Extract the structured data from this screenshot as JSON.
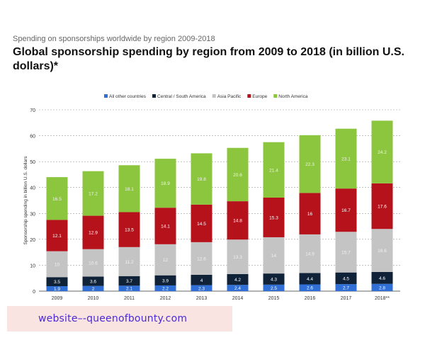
{
  "header": {
    "subtitle": "Spending on sponsorships worldwide by region 2009-2018",
    "title": "Global sponsorship spending by region from 2009 to 2018 (in billion U.S. dollars)*"
  },
  "watermark": {
    "text": "website–-queenofbounty.com"
  },
  "chart_data": {
    "type": "bar",
    "stacked": true,
    "categories": [
      "2009",
      "2010",
      "2011",
      "2012",
      "2013",
      "2014",
      "2015",
      "2016",
      "2017",
      "2018**"
    ],
    "ylabel": "Sponsorship spending in billion U.S. dollars",
    "xlabel": "",
    "ylim": [
      0,
      70
    ],
    "yticks": [
      0,
      10,
      20,
      30,
      40,
      50,
      60,
      70
    ],
    "grid": true,
    "legend_position": "top",
    "series": [
      {
        "name": "All other countries",
        "color": "#2f6fd6",
        "values": [
          1.9,
          2,
          2.1,
          2.2,
          2.3,
          2.4,
          2.5,
          2.6,
          2.7,
          2.8
        ],
        "labels": [
          "1.9",
          "2",
          "2.1",
          "2.2",
          "2.3",
          "2.4",
          "2.5",
          "2.6",
          "2.7",
          "2.8"
        ]
      },
      {
        "name": "Central / South America",
        "color": "#0f2238",
        "values": [
          3.5,
          3.6,
          3.7,
          3.9,
          4,
          4.2,
          4.3,
          4.4,
          4.5,
          4.6
        ],
        "labels": [
          "3.5",
          "3.6",
          "3.7",
          "3.9",
          "4",
          "4.2",
          "4.3",
          "4.4",
          "4.5",
          "4.6"
        ]
      },
      {
        "name": "Asia Pacific",
        "color": "#c4c4c4",
        "values": [
          10,
          10.6,
          11.2,
          12,
          12.6,
          13.3,
          14,
          14.9,
          15.7,
          16.6
        ],
        "labels": [
          "10",
          "10.6",
          "11.2",
          "12",
          "12.6",
          "13.3",
          "14",
          "14.9",
          "15.7",
          "16.6"
        ]
      },
      {
        "name": "Europe",
        "color": "#b5121b",
        "values": [
          12.1,
          12.9,
          13.5,
          14.1,
          14.5,
          14.8,
          15.3,
          16,
          16.7,
          17.6
        ],
        "labels": [
          "12.1",
          "12.9",
          "13.5",
          "14.1",
          "14.5",
          "14.8",
          "15.3",
          "16",
          "16.7",
          "17.6"
        ]
      },
      {
        "name": "North America",
        "color": "#8cc63e",
        "values": [
          16.5,
          17.2,
          18.1,
          18.9,
          19.8,
          20.6,
          21.4,
          22.3,
          23.1,
          24.2
        ],
        "labels": [
          "16.5",
          "17.2",
          "18.1",
          "18.9",
          "19.8",
          "20.6",
          "21.4",
          "22.3",
          "23.1",
          "24.2"
        ]
      }
    ]
  }
}
